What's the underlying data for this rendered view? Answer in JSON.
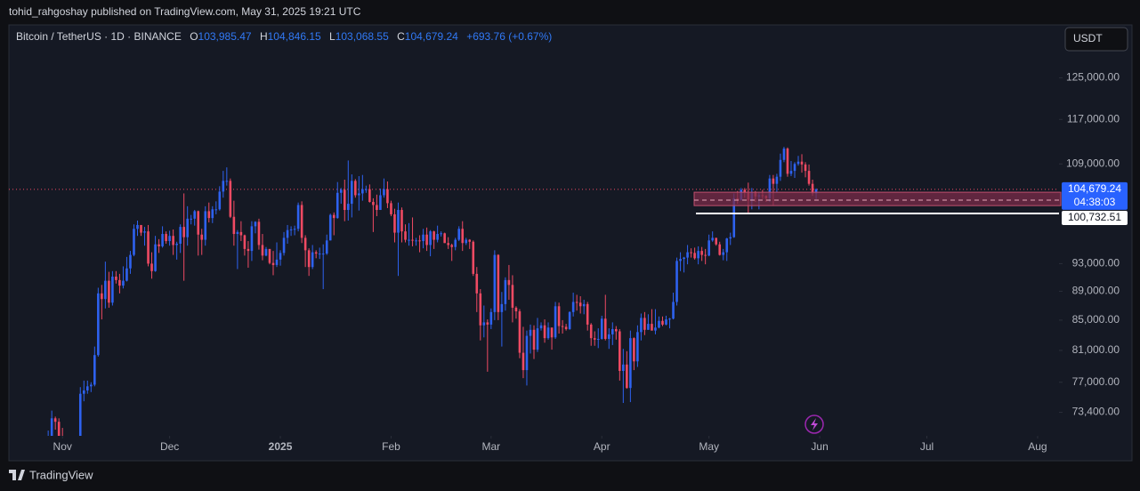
{
  "publisher_line": "tohid_rahgoshay published on TradingView.com, May 31, 2025 19:21 UTC",
  "brand": "TradingView",
  "currency_button": "USDT",
  "chart_data": {
    "type": "candlestick",
    "title": "Bitcoin / TetherUS · 1D · BINANCE",
    "ohlc_legend": [
      {
        "label": "O",
        "value": "103,985.47"
      },
      {
        "label": "H",
        "value": "104,846.15"
      },
      {
        "label": "L",
        "value": "103,068.55"
      },
      {
        "label": "C",
        "value": "104,679.24"
      }
    ],
    "change": "+693.76 (+0.67%)",
    "up_color": "#2e62f0",
    "down_color": "#ef4a63",
    "log_scale": true,
    "ylim": [
      70700,
      136000
    ],
    "yticks": [
      {
        "value": 125000,
        "label": "125,000.00"
      },
      {
        "value": 117000,
        "label": "117,000.00"
      },
      {
        "value": 109000,
        "label": "109,000.00"
      },
      {
        "value": 93000,
        "label": "93,000.00"
      },
      {
        "value": 89000,
        "label": "89,000.00"
      },
      {
        "value": 85000,
        "label": "85,000.00"
      },
      {
        "value": 81000,
        "label": "81,000.00"
      },
      {
        "value": 77000,
        "label": "77,000.00"
      },
      {
        "value": 73400,
        "label": "73,400.00"
      }
    ],
    "xlim": [
      "2024-10-17",
      "2025-08-07"
    ],
    "xticks": [
      {
        "value": "2024-11-01",
        "label": "Nov"
      },
      {
        "value": "2024-12-01",
        "label": "Dec"
      },
      {
        "value": "2025-01-01",
        "label": "2025"
      },
      {
        "value": "2025-02-01",
        "label": "Feb"
      },
      {
        "value": "2025-03-01",
        "label": "Mar"
      },
      {
        "value": "2025-04-01",
        "label": "Apr"
      },
      {
        "value": "2025-05-01",
        "label": "May"
      },
      {
        "value": "2025-06-01",
        "label": "Jun"
      },
      {
        "value": "2025-07-01",
        "label": "Jul"
      },
      {
        "value": "2025-08-01",
        "label": "Aug"
      }
    ],
    "last_price": {
      "value": 104679.24,
      "label": "104,679.24",
      "countdown": "04:38:03",
      "color": "#2962ff"
    },
    "level": {
      "value": 100732.51,
      "label": "100,732.51",
      "color": "#ffffff"
    },
    "zone": {
      "high": 104200,
      "low": 102000,
      "mid": 102900,
      "color": "#7a2b48"
    },
    "x": [
      "2024-10-28",
      "2024-10-29",
      "2024-10-30",
      "2024-10-31",
      "2024-11-01",
      "2024-11-02",
      "2024-11-03",
      "2024-11-04",
      "2024-11-05",
      "2024-11-06",
      "2024-11-07",
      "2024-11-08",
      "2024-11-09",
      "2024-11-10",
      "2024-11-11",
      "2024-11-12",
      "2024-11-13",
      "2024-11-14",
      "2024-11-15",
      "2024-11-16",
      "2024-11-17",
      "2024-11-18",
      "2024-11-19",
      "2024-11-20",
      "2024-11-21",
      "2024-11-22",
      "2024-11-23",
      "2024-11-24",
      "2024-11-25",
      "2024-11-26",
      "2024-11-27",
      "2024-11-28",
      "2024-11-29",
      "2024-11-30",
      "2024-12-01",
      "2024-12-02",
      "2024-12-03",
      "2024-12-04",
      "2024-12-05",
      "2024-12-06",
      "2024-12-07",
      "2024-12-08",
      "2024-12-09",
      "2024-12-10",
      "2024-12-11",
      "2024-12-12",
      "2024-12-13",
      "2024-12-14",
      "2024-12-15",
      "2024-12-16",
      "2024-12-17",
      "2024-12-18",
      "2024-12-19",
      "2024-12-20",
      "2024-12-21",
      "2024-12-22",
      "2024-12-23",
      "2024-12-24",
      "2024-12-25",
      "2024-12-26",
      "2024-12-27",
      "2024-12-28",
      "2024-12-29",
      "2024-12-30",
      "2024-12-31",
      "2025-01-01",
      "2025-01-02",
      "2025-01-03",
      "2025-01-04",
      "2025-01-05",
      "2025-01-06",
      "2025-01-07",
      "2025-01-08",
      "2025-01-09",
      "2025-01-10",
      "2025-01-11",
      "2025-01-12",
      "2025-01-13",
      "2025-01-14",
      "2025-01-15",
      "2025-01-16",
      "2025-01-17",
      "2025-01-18",
      "2025-01-19",
      "2025-01-20",
      "2025-01-21",
      "2025-01-22",
      "2025-01-23",
      "2025-01-24",
      "2025-01-25",
      "2025-01-26",
      "2025-01-27",
      "2025-01-28",
      "2025-01-29",
      "2025-01-30",
      "2025-01-31",
      "2025-02-01",
      "2025-02-02",
      "2025-02-03",
      "2025-02-04",
      "2025-02-05",
      "2025-02-06",
      "2025-02-07",
      "2025-02-08",
      "2025-02-09",
      "2025-02-10",
      "2025-02-11",
      "2025-02-12",
      "2025-02-13",
      "2025-02-14",
      "2025-02-15",
      "2025-02-16",
      "2025-02-17",
      "2025-02-18",
      "2025-02-19",
      "2025-02-20",
      "2025-02-21",
      "2025-02-22",
      "2025-02-23",
      "2025-02-24",
      "2025-02-25",
      "2025-02-26",
      "2025-02-27",
      "2025-02-28",
      "2025-03-01",
      "2025-03-02",
      "2025-03-03",
      "2025-03-04",
      "2025-03-05",
      "2025-03-06",
      "2025-03-07",
      "2025-03-08",
      "2025-03-09",
      "2025-03-10",
      "2025-03-11",
      "2025-03-12",
      "2025-03-13",
      "2025-03-14",
      "2025-03-15",
      "2025-03-16",
      "2025-03-17",
      "2025-03-18",
      "2025-03-19",
      "2025-03-20",
      "2025-03-21",
      "2025-03-22",
      "2025-03-23",
      "2025-03-24",
      "2025-03-25",
      "2025-03-26",
      "2025-03-27",
      "2025-03-28",
      "2025-03-29",
      "2025-03-30",
      "2025-03-31",
      "2025-04-01",
      "2025-04-02",
      "2025-04-03",
      "2025-04-04",
      "2025-04-05",
      "2025-04-06",
      "2025-04-07",
      "2025-04-08",
      "2025-04-09",
      "2025-04-10",
      "2025-04-11",
      "2025-04-12",
      "2025-04-13",
      "2025-04-14",
      "2025-04-15",
      "2025-04-16",
      "2025-04-17",
      "2025-04-18",
      "2025-04-19",
      "2025-04-20",
      "2025-04-21",
      "2025-04-22",
      "2025-04-23",
      "2025-04-24",
      "2025-04-25",
      "2025-04-26",
      "2025-04-27",
      "2025-04-28",
      "2025-04-29",
      "2025-04-30",
      "2025-05-01",
      "2025-05-02",
      "2025-05-03",
      "2025-05-04",
      "2025-05-05",
      "2025-05-06",
      "2025-05-07",
      "2025-05-08",
      "2025-05-09",
      "2025-05-10",
      "2025-05-11",
      "2025-05-12",
      "2025-05-13",
      "2025-05-14",
      "2025-05-15",
      "2025-05-16",
      "2025-05-17",
      "2025-05-18",
      "2025-05-19",
      "2025-05-20",
      "2025-05-21",
      "2025-05-22",
      "2025-05-23",
      "2025-05-24",
      "2025-05-25",
      "2025-05-26",
      "2025-05-27",
      "2025-05-28",
      "2025-05-29",
      "2025-05-30",
      "2025-05-31"
    ],
    "open": [
      67900,
      69900,
      72700,
      72300,
      70200,
      69500,
      69300,
      68700,
      67800,
      69400,
      75600,
      76000,
      76500,
      76700,
      80400,
      88700,
      87900,
      90500,
      87400,
      91100,
      90600,
      89800,
      90500,
      92300,
      94300,
      98300,
      98900,
      97700,
      97900,
      93000,
      91900,
      95900,
      95600,
      97500,
      96400,
      97200,
      95800,
      96000,
      98600,
      97000,
      99900,
      99900,
      101100,
      97400,
      96600,
      101100,
      100000,
      101400,
      101400,
      104300,
      106100,
      106100,
      100200,
      97500,
      97800,
      97300,
      95200,
      94900,
      98700,
      99400,
      95800,
      94200,
      95200,
      93100,
      92800,
      93600,
      94600,
      96900,
      98100,
      98200,
      98300,
      102100,
      96900,
      95000,
      92500,
      94700,
      94500,
      94500,
      94500,
      96500,
      100500,
      100000,
      104100,
      104600,
      101300,
      102300,
      106100,
      103700,
      104000,
      104700,
      104700,
      102600,
      102100,
      101300,
      103700,
      104700,
      102400,
      100600,
      97700,
      101300,
      97900,
      96600,
      96600,
      96500,
      96500,
      96400,
      97400,
      95800,
      97900,
      96600,
      97500,
      97600,
      96100,
      95800,
      95500,
      96600,
      98300,
      96100,
      96600,
      96300,
      91500,
      88700,
      84300,
      84700,
      84400,
      86100,
      94300,
      86100,
      87200,
      90600,
      89900,
      86700,
      86200,
      80700,
      78500,
      82900,
      83700,
      81100,
      83900,
      84300,
      82600,
      84000,
      82700,
      86900,
      84200,
      84100,
      83800,
      86100,
      87500,
      87400,
      86900,
      87200,
      84400,
      82600,
      82400,
      82500,
      85200,
      82500,
      83100,
      83800,
      83500,
      78400,
      79200,
      76300,
      82600,
      79600,
      83400,
      85300,
      83700,
      84500,
      83600,
      84000,
      84900,
      84400,
      85100,
      85200,
      87500,
      93400,
      93700,
      93900,
      94700,
      94600,
      93800,
      94900,
      94300,
      94200,
      96500,
      96900,
      95900,
      94300,
      94700,
      96800,
      97000,
      103200,
      102900,
      104600,
      104100,
      102800,
      104200,
      103500,
      103700,
      103600,
      103200,
      106500,
      105600,
      106800,
      109700,
      111700,
      107300,
      107800,
      109000,
      109400,
      108900,
      107800,
      105600,
      103985.47
    ],
    "high": [
      71300,
      73600,
      72900,
      72700,
      71600,
      70000,
      69400,
      69000,
      70600,
      76400,
      77200,
      77200,
      77000,
      81500,
      89500,
      89900,
      93300,
      91800,
      91900,
      91900,
      91500,
      92600,
      94000,
      94900,
      99000,
      99600,
      98900,
      98600,
      98900,
      94700,
      97200,
      96700,
      98700,
      97900,
      98000,
      98200,
      96300,
      99000,
      104000,
      101900,
      100500,
      101300,
      101200,
      98300,
      101900,
      102500,
      101900,
      102700,
      105200,
      107800,
      108400,
      106500,
      102800,
      98100,
      99500,
      97400,
      96400,
      99500,
      99500,
      99900,
      97500,
      95500,
      95200,
      94900,
      96200,
      95000,
      97800,
      98900,
      98700,
      98800,
      102500,
      102700,
      97300,
      95300,
      95800,
      95000,
      95400,
      95900,
      97400,
      100700,
      100900,
      105900,
      104900,
      106300,
      109600,
      107200,
      106400,
      106900,
      107100,
      105300,
      105500,
      103200,
      103800,
      104800,
      106500,
      106000,
      102800,
      101500,
      102500,
      101700,
      99000,
      99200,
      100100,
      96900,
      97300,
      98300,
      98500,
      98100,
      98000,
      98800,
      97900,
      97700,
      97000,
      96000,
      96900,
      98700,
      99500,
      96900,
      96700,
      96500,
      92500,
      89300,
      87000,
      85100,
      86600,
      95000,
      94400,
      88900,
      91000,
      92800,
      91300,
      86900,
      86500,
      84100,
      83600,
      84400,
      84300,
      85300,
      84700,
      85100,
      84700,
      84000,
      87500,
      87400,
      85000,
      84500,
      86200,
      88800,
      88500,
      88300,
      87800,
      87500,
      84600,
      83500,
      83900,
      85600,
      88500,
      83900,
      84700,
      84200,
      83800,
      81200,
      80900,
      83600,
      82700,
      84300,
      85900,
      86100,
      85800,
      86500,
      86500,
      85500,
      85500,
      85600,
      85300,
      88800,
      93900,
      94700,
      94000,
      95800,
      95300,
      95400,
      95600,
      95500,
      95200,
      97400,
      97900,
      96900,
      96300,
      95200,
      96900,
      97700,
      104000,
      104400,
      104900,
      104900,
      105800,
      104900,
      104400,
      104200,
      104600,
      103700,
      107100,
      107100,
      107300,
      110800,
      112000,
      111900,
      109500,
      109300,
      110400,
      110700,
      109300,
      108900,
      106300,
      104846.15
    ],
    "low": [
      67600,
      69700,
      71400,
      69700,
      68800,
      69000,
      67500,
      66800,
      67500,
      69300,
      74700,
      75600,
      75800,
      76500,
      80200,
      85100,
      86600,
      86700,
      87000,
      90100,
      88700,
      89400,
      90400,
      91500,
      94100,
      97200,
      97200,
      95700,
      92600,
      90800,
      91800,
      94600,
      95400,
      96000,
      95700,
      94300,
      93600,
      94600,
      90500,
      95700,
      99000,
      98800,
      94200,
      94300,
      95700,
      99300,
      99200,
      100600,
      101200,
      103300,
      105300,
      100000,
      95700,
      92200,
      96400,
      94200,
      92400,
      93400,
      97600,
      95100,
      93500,
      94100,
      92900,
      91300,
      92500,
      92700,
      94200,
      96000,
      97200,
      97300,
      97900,
      96100,
      92500,
      91200,
      92200,
      93800,
      93700,
      89300,
      94300,
      96500,
      97300,
      99900,
      102300,
      99500,
      99600,
      100100,
      103300,
      101200,
      102800,
      104100,
      102500,
      97800,
      100300,
      101300,
      103300,
      101600,
      100300,
      96200,
      91200,
      96200,
      96200,
      95700,
      95600,
      95700,
      94700,
      95300,
      94900,
      94100,
      95200,
      96200,
      97100,
      96100,
      95200,
      93400,
      95000,
      96400,
      94900,
      95800,
      95200,
      91200,
      86100,
      82300,
      82700,
      78300,
      83800,
      85000,
      85000,
      81500,
      86300,
      87800,
      84700,
      85200,
      80000,
      77500,
      76600,
      80600,
      79900,
      80800,
      83600,
      82000,
      82400,
      81100,
      82500,
      83200,
      83200,
      83600,
      83700,
      85500,
      86300,
      85900,
      85800,
      83600,
      81600,
      81600,
      81300,
      82400,
      82300,
      81200,
      81700,
      82400,
      77200,
      74500,
      76200,
      74600,
      78500,
      78900,
      82300,
      83000,
      83700,
      83600,
      83100,
      83900,
      84200,
      84300,
      83900,
      85100,
      87000,
      91900,
      91700,
      92900,
      93900,
      93600,
      92900,
      93400,
      92900,
      94100,
      96300,
      95700,
      94200,
      93500,
      93400,
      95800,
      96900,
      102300,
      102800,
      103300,
      100700,
      101400,
      102600,
      101400,
      103100,
      102600,
      102600,
      102000,
      104200,
      106100,
      109300,
      106800,
      106900,
      106600,
      108700,
      107500,
      106700,
      105300,
      103600,
      103068.55
    ],
    "close": [
      69900,
      72700,
      72300,
      70200,
      69500,
      69300,
      68700,
      67800,
      69400,
      75600,
      76000,
      76500,
      76700,
      80400,
      88700,
      87900,
      90500,
      87400,
      91100,
      90600,
      89800,
      90500,
      92300,
      94300,
      98300,
      98900,
      97700,
      97900,
      93000,
      91900,
      95900,
      95600,
      97500,
      96400,
      97200,
      95800,
      96000,
      98600,
      97000,
      99900,
      99900,
      101100,
      97400,
      96600,
      101100,
      100000,
      101400,
      101400,
      104300,
      106100,
      106100,
      100200,
      97500,
      97800,
      97300,
      95200,
      94900,
      98700,
      99400,
      95800,
      94200,
      95200,
      93100,
      92800,
      93600,
      94600,
      96900,
      98100,
      98200,
      98300,
      102100,
      96900,
      95000,
      92500,
      94700,
      94500,
      94500,
      94500,
      96500,
      100500,
      100000,
      104100,
      104600,
      101300,
      102300,
      106100,
      103700,
      104000,
      104700,
      104700,
      102600,
      102100,
      101300,
      103700,
      104700,
      102400,
      100600,
      97700,
      101300,
      97900,
      96600,
      96600,
      96500,
      96500,
      96400,
      97400,
      95800,
      97900,
      96600,
      97500,
      97600,
      96100,
      95800,
      95500,
      96600,
      98300,
      96100,
      96600,
      96300,
      91500,
      88700,
      84300,
      84700,
      84400,
      86100,
      94300,
      86100,
      87200,
      90600,
      89900,
      86700,
      86200,
      80700,
      78500,
      82900,
      83700,
      81100,
      83900,
      84300,
      82600,
      84000,
      82700,
      86900,
      84200,
      84100,
      83800,
      86100,
      87500,
      87400,
      86900,
      87200,
      84400,
      82600,
      82400,
      82500,
      85200,
      82500,
      83100,
      83800,
      83500,
      78400,
      79200,
      76300,
      82600,
      79600,
      83400,
      85300,
      83700,
      84500,
      83600,
      84000,
      84900,
      84400,
      85100,
      85200,
      87500,
      93400,
      93700,
      93900,
      94700,
      94600,
      93800,
      94900,
      94300,
      94200,
      96500,
      96900,
      95900,
      94300,
      94700,
      96800,
      97000,
      103200,
      102900,
      104600,
      104100,
      102800,
      104200,
      103500,
      103700,
      103600,
      103200,
      106500,
      105600,
      106800,
      109700,
      111700,
      107300,
      107800,
      109000,
      109400,
      108900,
      107800,
      105600,
      104000,
      104679.24
    ]
  }
}
